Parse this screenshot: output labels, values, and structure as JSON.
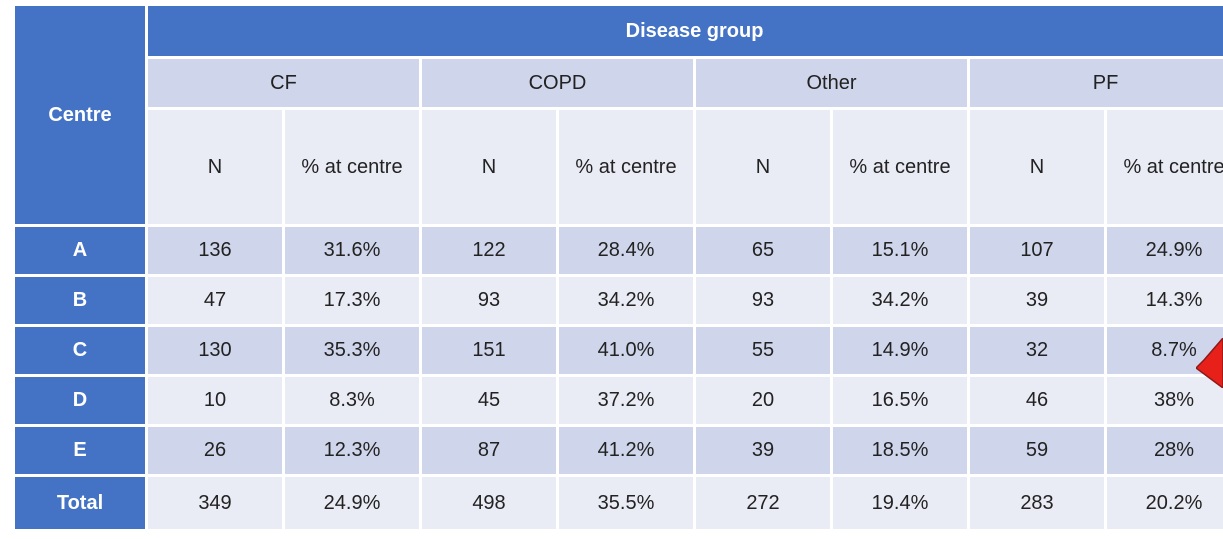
{
  "table": {
    "corner": "Centre",
    "group": "Disease group",
    "columns": [
      {
        "name": "CF",
        "sub": [
          "N",
          "% at centre"
        ]
      },
      {
        "name": "COPD",
        "sub": [
          "N",
          "% at centre"
        ]
      },
      {
        "name": "Other",
        "sub": [
          "N",
          "% at centre"
        ]
      },
      {
        "name": "PF",
        "sub": [
          "N",
          "% at centre"
        ]
      }
    ],
    "rows": [
      {
        "label": "A",
        "cells": [
          "136",
          "31.6%",
          "122",
          "28.4%",
          "65",
          "15.1%",
          "107",
          "24.9%"
        ]
      },
      {
        "label": "B",
        "cells": [
          "47",
          "17.3%",
          "93",
          "34.2%",
          "93",
          "34.2%",
          "39",
          "14.3%"
        ]
      },
      {
        "label": "C",
        "cells": [
          "130",
          "35.3%",
          "151",
          "41.0%",
          "55",
          "14.9%",
          "32",
          "8.7%"
        ]
      },
      {
        "label": "D",
        "cells": [
          "10",
          "8.3%",
          "45",
          "37.2%",
          "20",
          "16.5%",
          "46",
          "38%"
        ]
      },
      {
        "label": "E",
        "cells": [
          "26",
          "12.3%",
          "87",
          "41.2%",
          "39",
          "18.5%",
          "59",
          "28%"
        ]
      },
      {
        "label": "Total",
        "cells": [
          "349",
          "24.9%",
          "498",
          "35.5%",
          "272",
          "19.4%",
          "283",
          "20.2%"
        ]
      }
    ]
  }
}
